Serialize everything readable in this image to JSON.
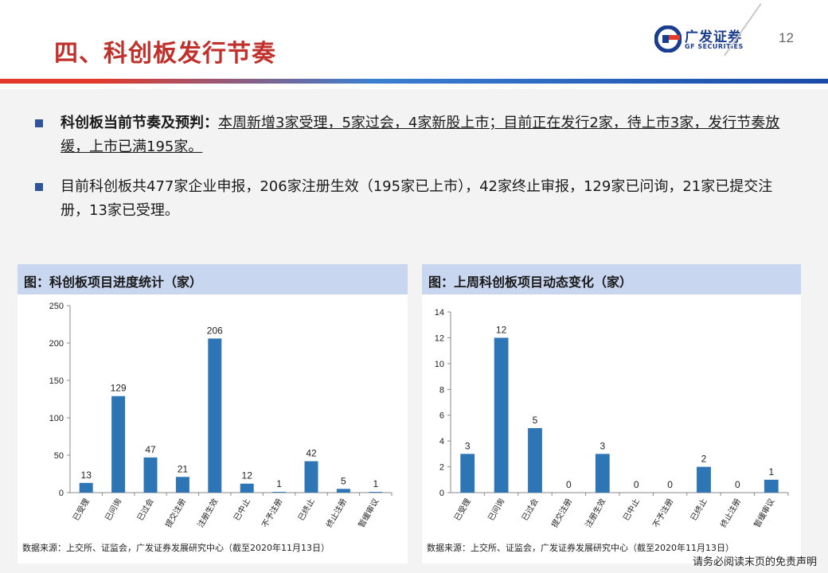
{
  "header": {
    "title": "四、科创板发行节奏",
    "logo_cn": "广发证券",
    "logo_en": "GF SECURITIES",
    "page_number": "12"
  },
  "bullets": [
    {
      "lead": "科创板当前节奏及预判：",
      "text": "本周新增3家受理，5家过会，4家新股上市；目前正在发行2家，待上市3家，发行节奏放缓，上市已满195家。"
    },
    {
      "text": "目前科创板共477家企业申报，206家注册生效（195家已上市），42家终止审报，129家已问询，21家已提交注册，13家已受理。"
    }
  ],
  "charts": {
    "left": {
      "title": "图：科创板项目进度统计（家）",
      "source": "数据来源：上交所、证监会，广发证券发展研究中心（截至2020年11月13日）"
    },
    "right": {
      "title": "图：上周科创板项目动态变化（家）",
      "source": "数据来源：上交所、证监会，广发证券发展研究中心（截至2020年11月13日）"
    }
  },
  "chart_data": [
    {
      "type": "bar",
      "categories": [
        "已受理",
        "已问询",
        "已过会",
        "提交注册",
        "注册生效",
        "已中止",
        "不予注册",
        "已终止",
        "终止注册",
        "暂缓审议"
      ],
      "values": [
        13,
        129,
        47,
        21,
        206,
        12,
        1,
        42,
        5,
        1
      ],
      "yticks": [
        0,
        50,
        100,
        150,
        200,
        250
      ],
      "ylim": [
        0,
        250
      ],
      "color": "#2e75b6"
    },
    {
      "type": "bar",
      "categories": [
        "已受理",
        "已问询",
        "已过会",
        "提交注册",
        "注册生效",
        "已中止",
        "不予注册",
        "已终止",
        "终止注册",
        "暂缓审议"
      ],
      "values": [
        3,
        12,
        5,
        0,
        3,
        0,
        0,
        2,
        0,
        1
      ],
      "yticks": [
        0,
        2,
        4,
        6,
        8,
        10,
        12,
        14
      ],
      "ylim": [
        0,
        14
      ],
      "color": "#2e75b6"
    }
  ],
  "footer": "请务必阅读末页的免责声明"
}
